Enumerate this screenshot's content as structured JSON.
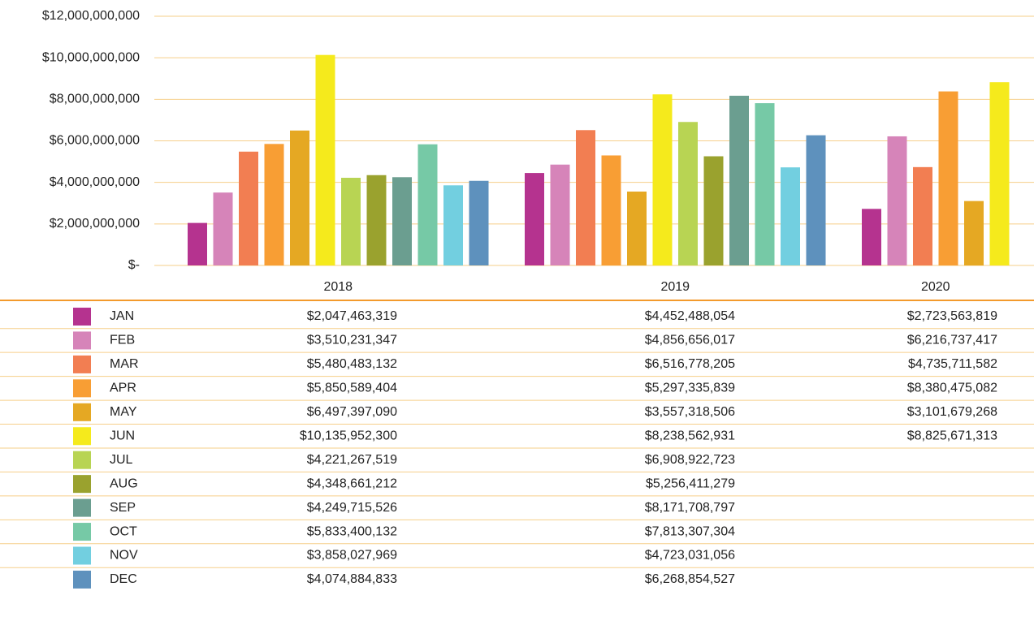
{
  "chart_data": {
    "type": "bar",
    "categories": [
      "2018",
      "2019",
      "2020"
    ],
    "ylim": [
      0,
      12000000000
    ],
    "yticks": [
      {
        "value": 0,
        "label": "$-"
      },
      {
        "value": 2000000000,
        "label": "$2,000,000,000"
      },
      {
        "value": 4000000000,
        "label": "$4,000,000,000"
      },
      {
        "value": 6000000000,
        "label": "$6,000,000,000"
      },
      {
        "value": 8000000000,
        "label": "$8,000,000,000"
      },
      {
        "value": 10000000000,
        "label": "$10,000,000,000"
      },
      {
        "value": 12000000000,
        "label": "$12,000,000,000"
      }
    ],
    "grid": true,
    "series": [
      {
        "name": "JAN",
        "color": "#b5338f",
        "values": [
          2047463319,
          4452488054,
          2723563819
        ],
        "value_labels": [
          "$2,047,463,319",
          "$4,452,488,054",
          "$2,723,563,819"
        ]
      },
      {
        "name": "FEB",
        "color": "#d684b9",
        "values": [
          3510231347,
          4856656017,
          6216737417
        ],
        "value_labels": [
          "$3,510,231,347",
          "$4,856,656,017",
          "$6,216,737,417"
        ]
      },
      {
        "name": "MAR",
        "color": "#f27e52",
        "values": [
          5480483132,
          6516778205,
          4735711582
        ],
        "value_labels": [
          "$5,480,483,132",
          "$6,516,778,205",
          "$4,735,711,582"
        ]
      },
      {
        "name": "APR",
        "color": "#f89e34",
        "values": [
          5850589404,
          5297335839,
          8380475082
        ],
        "value_labels": [
          "$5,850,589,404",
          "$5,297,335,839",
          "$8,380,475,082"
        ]
      },
      {
        "name": "MAY",
        "color": "#e5a823",
        "values": [
          6497397090,
          3557318506,
          3101679268
        ],
        "value_labels": [
          "$6,497,397,090",
          "$3,557,318,506",
          "$3,101,679,268"
        ]
      },
      {
        "name": "JUN",
        "color": "#f5ea1c",
        "values": [
          10135952300,
          8238562931,
          8825671313
        ],
        "value_labels": [
          "$10,135,952,300",
          "$8,238,562,931",
          "$8,825,671,313"
        ]
      },
      {
        "name": "JUL",
        "color": "#b8d453",
        "values": [
          4221267519,
          6908922723,
          null
        ],
        "value_labels": [
          "$4,221,267,519",
          "$6,908,922,723",
          null
        ]
      },
      {
        "name": "AUG",
        "color": "#9aa22e",
        "values": [
          4348661212,
          5256411279,
          null
        ],
        "value_labels": [
          "$4,348,661,212",
          "$5,256,411,279",
          null
        ]
      },
      {
        "name": "SEP",
        "color": "#6b9e90",
        "values": [
          4249715526,
          8171708797,
          null
        ],
        "value_labels": [
          "$4,249,715,526",
          "$8,171,708,797",
          null
        ]
      },
      {
        "name": "OCT",
        "color": "#76c9a6",
        "values": [
          5833400132,
          7813307304,
          null
        ],
        "value_labels": [
          "$5,833,400,132",
          "$7,813,307,304",
          null
        ]
      },
      {
        "name": "NOV",
        "color": "#72cfe0",
        "values": [
          3858027969,
          4723031056,
          null
        ],
        "value_labels": [
          "$3,858,027,969",
          "$4,723,031,056",
          null
        ]
      },
      {
        "name": "DEC",
        "color": "#5e91bd",
        "values": [
          4074884833,
          6268854527,
          null
        ],
        "value_labels": [
          "$4,074,884,833",
          "$6,268,854,527",
          null
        ]
      }
    ]
  }
}
